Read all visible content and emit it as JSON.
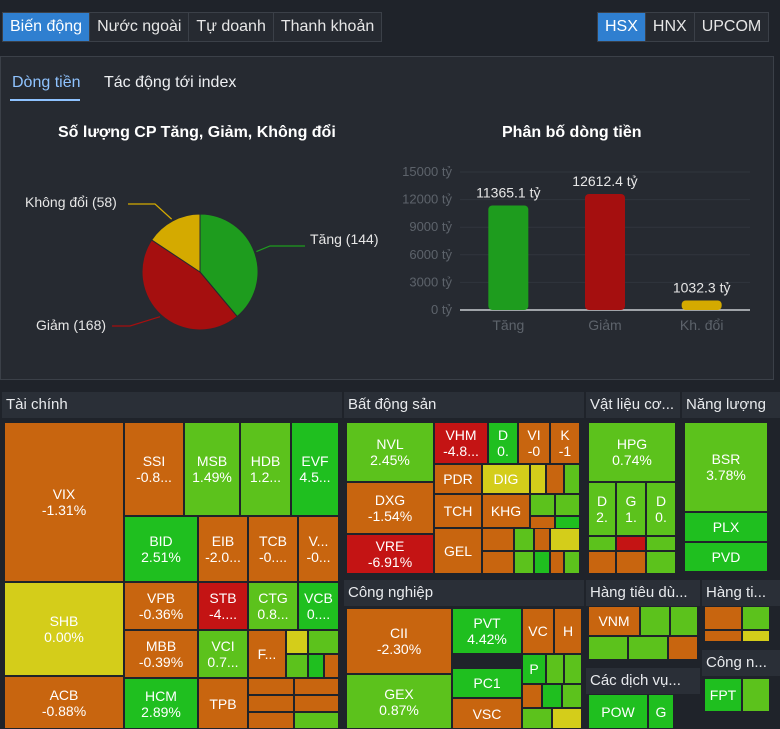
{
  "top_tabs": [
    {
      "label": "Biến động",
      "active": true
    },
    {
      "label": "Nước ngoài",
      "active": false
    },
    {
      "label": "Tự doanh",
      "active": false
    },
    {
      "label": "Thanh khoản",
      "active": false
    }
  ],
  "exchange_tabs": [
    {
      "label": "HSX",
      "active": true
    },
    {
      "label": "HNX",
      "active": false
    },
    {
      "label": "UPCOM",
      "active": false
    }
  ],
  "sub_tabs": [
    {
      "label": "Dòng tiền",
      "active": true
    },
    {
      "label": "Tác động tới index",
      "active": false
    }
  ],
  "colors": {
    "strong_up": "#1fbf1f",
    "up": "#5cc21c",
    "flat": "#d4cd1a",
    "down": "#c8650f",
    "strong_down": "#c41414",
    "pie_up": "#1e9c1e",
    "pie_down": "#a50f0f",
    "pie_flat": "#d4aa00"
  },
  "chart_data": [
    {
      "type": "pie",
      "title": "Số lượng CP Tăng, Giảm, Không đổi",
      "slices": [
        {
          "label": "Tăng (144)",
          "value": 144,
          "color": "#1e9c1e"
        },
        {
          "label": "Giảm (168)",
          "value": 168,
          "color": "#a50f0f"
        },
        {
          "label": "Không đổi (58)",
          "value": 58,
          "color": "#d4aa00"
        }
      ]
    },
    {
      "type": "bar",
      "title": "Phân bố dòng tiền",
      "categories": [
        "Tăng",
        "Giảm",
        "Kh. đổi"
      ],
      "values": [
        11365.1,
        12612.4,
        1032.3
      ],
      "data_labels": [
        "11365.1 tỷ",
        "12612.4 tỷ",
        "1032.3 tỷ"
      ],
      "colors": [
        "#1e9c1e",
        "#a50f0f",
        "#d4aa00"
      ],
      "yticks": [
        0,
        3000,
        6000,
        9000,
        12000,
        15000
      ],
      "ytick_labels": [
        "0 tỷ",
        "3000 tỷ",
        "6000 tỷ",
        "9000 tỷ",
        "12000 tỷ",
        "15000 tỷ"
      ],
      "ylim": [
        0,
        15000
      ],
      "grid": true
    }
  ],
  "heatmap": {
    "sectors": [
      {
        "title": "Tài chính"
      },
      {
        "title": "Bất động sản"
      },
      {
        "title": "Vật liệu cơ..."
      },
      {
        "title": "Năng lượng"
      },
      {
        "title": "Công nghiệp"
      },
      {
        "title": "Hàng tiêu dù..."
      },
      {
        "title": "Hàng ti..."
      },
      {
        "title": "Công n..."
      },
      {
        "title": "Các dịch vụ..."
      }
    ],
    "tiles": [
      {
        "ticker": "VIX",
        "change": "-1.31%"
      },
      {
        "ticker": "SHB",
        "change": "0.00%"
      },
      {
        "ticker": "ACB",
        "change": "-0.88%"
      },
      {
        "ticker": "SSI",
        "change": "-0.8..."
      },
      {
        "ticker": "MSB",
        "change": "1.49%"
      },
      {
        "ticker": "HDB",
        "change": "1.2..."
      },
      {
        "ticker": "EVF",
        "change": "4.5..."
      },
      {
        "ticker": "BID",
        "change": "2.51%"
      },
      {
        "ticker": "EIB",
        "change": "-2.0..."
      },
      {
        "ticker": "TCB",
        "change": "-0...."
      },
      {
        "ticker": "V...",
        "change": "-0..."
      },
      {
        "ticker": "VPB",
        "change": "-0.36%"
      },
      {
        "ticker": "STB",
        "change": "-4...."
      },
      {
        "ticker": "CTG",
        "change": "0.8..."
      },
      {
        "ticker": "VCB",
        "change": "0...."
      },
      {
        "ticker": "MBB",
        "change": "-0.39%"
      },
      {
        "ticker": "VCI",
        "change": "0.7..."
      },
      {
        "ticker": "F...",
        "change": ""
      },
      {
        "ticker": "HCM",
        "change": "2.89%"
      },
      {
        "ticker": "TPB",
        "change": ""
      },
      {
        "ticker": "NVL",
        "change": "2.45%"
      },
      {
        "ticker": "VHM",
        "change": "-4.8..."
      },
      {
        "ticker": "D",
        "change": "0."
      },
      {
        "ticker": "VI",
        "change": "-0"
      },
      {
        "ticker": "K",
        "change": "-1"
      },
      {
        "ticker": "DXG",
        "change": "-1.54%"
      },
      {
        "ticker": "PDR",
        "change": ""
      },
      {
        "ticker": "DIG",
        "change": ""
      },
      {
        "ticker": "VRE",
        "change": "-6.91%"
      },
      {
        "ticker": "TCH",
        "change": ""
      },
      {
        "ticker": "KHG",
        "change": ""
      },
      {
        "ticker": "GEL",
        "change": ""
      },
      {
        "ticker": "HPG",
        "change": "0.74%"
      },
      {
        "ticker": "D",
        "change": "2."
      },
      {
        "ticker": "G",
        "change": "1."
      },
      {
        "ticker": "D",
        "change": "0."
      },
      {
        "ticker": "BSR",
        "change": "3.78%"
      },
      {
        "ticker": "PLX",
        "change": ""
      },
      {
        "ticker": "PVD",
        "change": ""
      },
      {
        "ticker": "CII",
        "change": "-2.30%"
      },
      {
        "ticker": "PVT",
        "change": "4.42%"
      },
      {
        "ticker": "VC",
        "change": ""
      },
      {
        "ticker": "H",
        "change": ""
      },
      {
        "ticker": "P",
        "change": ""
      },
      {
        "ticker": "GEX",
        "change": "0.87%"
      },
      {
        "ticker": "PC1",
        "change": ""
      },
      {
        "ticker": "VSC",
        "change": ""
      },
      {
        "ticker": "VNM",
        "change": ""
      },
      {
        "ticker": "POW",
        "change": ""
      },
      {
        "ticker": "G",
        "change": ""
      },
      {
        "ticker": "FPT",
        "change": ""
      }
    ]
  }
}
